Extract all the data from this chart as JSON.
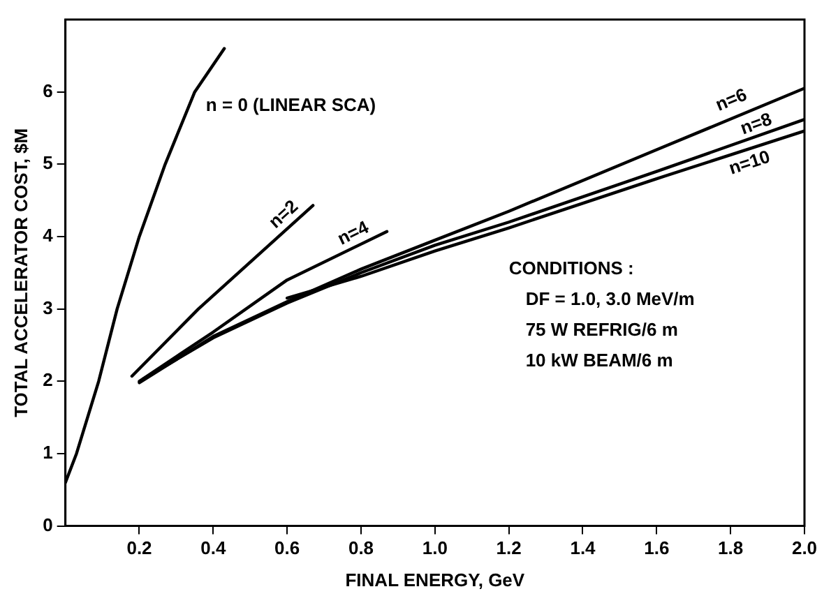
{
  "chart_data": {
    "type": "line",
    "xlabel": "FINAL ENERGY, GeV",
    "ylabel": "TOTAL ACCELERATOR COST, $M",
    "xlim": [
      0,
      2.0
    ],
    "ylim": [
      0,
      7
    ],
    "xticks": [
      {
        "value": 0.2,
        "label": "0.2"
      },
      {
        "value": 0.4,
        "label": "0.4"
      },
      {
        "value": 0.6,
        "label": "0.6"
      },
      {
        "value": 0.8,
        "label": "0.8"
      },
      {
        "value": 1,
        "label": "1.0"
      },
      {
        "value": 1.2,
        "label": "1.2"
      },
      {
        "value": 1.4,
        "label": "1.4"
      },
      {
        "value": 1.6,
        "label": "1.6"
      },
      {
        "value": 1.8,
        "label": "1.8"
      },
      {
        "value": 2,
        "label": "2.0"
      }
    ],
    "yticks": [
      0,
      1,
      2,
      3,
      4,
      5,
      6
    ],
    "grid": false,
    "legend": false,
    "marker": "none",
    "line_style": "solid",
    "series": [
      {
        "name": "n = 0 (LINEAR SCA)",
        "color": "#000000",
        "x": [
          0,
          0.03,
          0.09,
          0.14,
          0.2,
          0.27,
          0.35,
          0.43
        ],
        "values": [
          0.6,
          1,
          2,
          3,
          4,
          5,
          6,
          6.6
        ]
      },
      {
        "name": "n=2",
        "color": "#000000",
        "x": [
          0.18,
          0.36,
          0.67
        ],
        "values": [
          2.07,
          3,
          4.43
        ]
      },
      {
        "name": "n=4",
        "color": "#000000",
        "x": [
          0.2,
          0.4,
          0.6,
          0.87
        ],
        "values": [
          2.0,
          2.68,
          3.4,
          4.07
        ]
      },
      {
        "name": "n=6",
        "color": "#000000",
        "x": [
          0.2,
          0.4,
          0.6,
          0.8,
          1.0,
          1.2,
          1.6,
          2.0
        ],
        "values": [
          1.98,
          2.62,
          3.1,
          3.55,
          3.95,
          4.35,
          5.2,
          6.05
        ]
      },
      {
        "name": "n=8",
        "color": "#000000",
        "x": [
          0.21,
          0.4,
          0.6,
          0.8,
          1.0,
          1.2,
          1.6,
          2.0
        ],
        "values": [
          2.03,
          2.6,
          3.08,
          3.5,
          3.88,
          4.2,
          4.9,
          5.62
        ]
      },
      {
        "name": "n=10",
        "color": "#000000",
        "x": [
          0.6,
          0.8,
          1.0,
          1.2,
          1.6,
          2.0
        ],
        "values": [
          3.15,
          3.45,
          3.8,
          4.12,
          4.8,
          5.46
        ]
      }
    ],
    "annotations": [
      "CONDITIONS :",
      "DF = 1.0, 3.0 MeV/m",
      "75 W REFRIG/6 m",
      "10 kW BEAM/6 m"
    ]
  }
}
